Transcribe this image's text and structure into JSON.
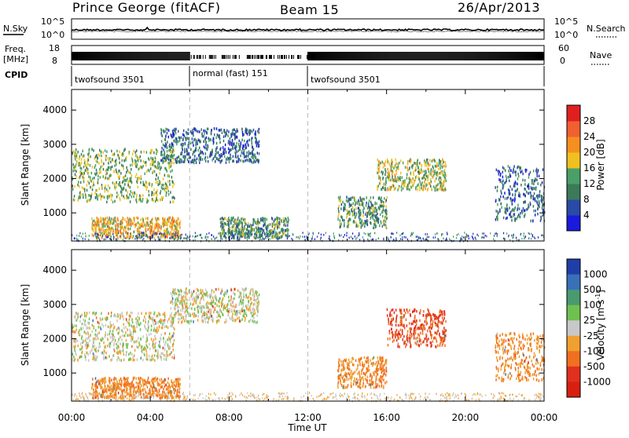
{
  "header": {
    "station": "Prince George (fitACF)",
    "beam": "Beam 15",
    "date": "26/Apr/2013"
  },
  "panels": {
    "nsky": {
      "label": "N.Sky",
      "tick_top": "10^5",
      "tick_bottom": "10^0",
      "right_label": "N.Search",
      "right_tick_top": "10^5",
      "right_tick_bottom": "10^0"
    },
    "freq": {
      "label_line1": "Freq.",
      "label_line2": "[MHz]",
      "tick_top": "18",
      "tick_bottom": "8",
      "right_label": "Nave",
      "right_tick_top": "60",
      "right_tick_bottom": "0"
    },
    "cpid": {
      "label": "CPID",
      "segments": [
        {
          "label": "twofsound 3501"
        },
        {
          "label": "normal (fast) 151"
        },
        {
          "label": "twofsound 3501"
        }
      ]
    }
  },
  "chart_data": [
    {
      "type": "heatmap",
      "title": "Power",
      "ylabel": "Slant Range [km]",
      "xlabel": "",
      "ylim": [
        180,
        4600
      ],
      "yticks": [
        "1000",
        "2000",
        "3000",
        "4000"
      ],
      "xticks": [
        "00:00",
        "04:00",
        "08:00",
        "12:00",
        "16:00",
        "20:00",
        "00:00"
      ],
      "colorbar": {
        "label": "Power [dB]",
        "ticks": [
          "4",
          "8",
          "12",
          "16",
          "20",
          "24",
          "28"
        ],
        "colors": [
          "#1a1adc",
          "#2a4aa8",
          "#3c7a5a",
          "#4aa068",
          "#f0c020",
          "#f59020",
          "#f06030",
          "#e02020"
        ]
      },
      "clusters": [
        {
          "t0": 0.0,
          "t1": 5.2,
          "r0": 1350,
          "r1": 2900,
          "level": 14
        },
        {
          "t0": 1.0,
          "t1": 5.5,
          "r0": 300,
          "r1": 900,
          "level": 20
        },
        {
          "t0": 4.5,
          "t1": 9.5,
          "r0": 2500,
          "r1": 3500,
          "level": 8
        },
        {
          "t0": 7.5,
          "t1": 11.0,
          "r0": 300,
          "r1": 900,
          "level": 12
        },
        {
          "t0": 13.5,
          "t1": 16.0,
          "r0": 600,
          "r1": 1500,
          "level": 12
        },
        {
          "t0": 15.5,
          "t1": 19.0,
          "r0": 1700,
          "r1": 2600,
          "level": 16
        },
        {
          "t0": 21.5,
          "t1": 24.0,
          "r0": 800,
          "r1": 2400,
          "level": 8
        }
      ]
    },
    {
      "type": "heatmap",
      "title": "Velocity",
      "ylabel": "Slant Range [km]",
      "xlabel": "Time UT",
      "ylim": [
        180,
        4600
      ],
      "yticks": [
        "1000",
        "2000",
        "3000",
        "4000"
      ],
      "xticks": [
        "00:00",
        "04:00",
        "08:00",
        "12:00",
        "16:00",
        "20:00",
        "00:00"
      ],
      "colorbar": {
        "label": "Velocity [m s^-1]",
        "ticks": [
          "1000",
          "500",
          "100",
          "25",
          "-25",
          "-100",
          "-500",
          "-1000"
        ],
        "colors": [
          "#1f3ea8",
          "#3a70b8",
          "#4a9a70",
          "#70c050",
          "#c8c8c8",
          "#f0a030",
          "#f07020",
          "#e03020",
          "#d82010"
        ]
      },
      "clusters": [
        {
          "t0": 0.0,
          "t1": 5.2,
          "r0": 1400,
          "r1": 2800,
          "level": 0
        },
        {
          "t0": 1.0,
          "t1": 5.5,
          "r0": 300,
          "r1": 900,
          "level": -100
        },
        {
          "t0": 5.0,
          "t1": 9.5,
          "r0": 2500,
          "r1": 3500,
          "level": 0
        },
        {
          "t0": 13.5,
          "t1": 16.0,
          "r0": 600,
          "r1": 1500,
          "level": -100
        },
        {
          "t0": 16.0,
          "t1": 19.0,
          "r0": 1800,
          "r1": 2900,
          "level": -500
        },
        {
          "t0": 21.5,
          "t1": 24.0,
          "r0": 800,
          "r1": 2200,
          "level": -100
        }
      ]
    }
  ]
}
